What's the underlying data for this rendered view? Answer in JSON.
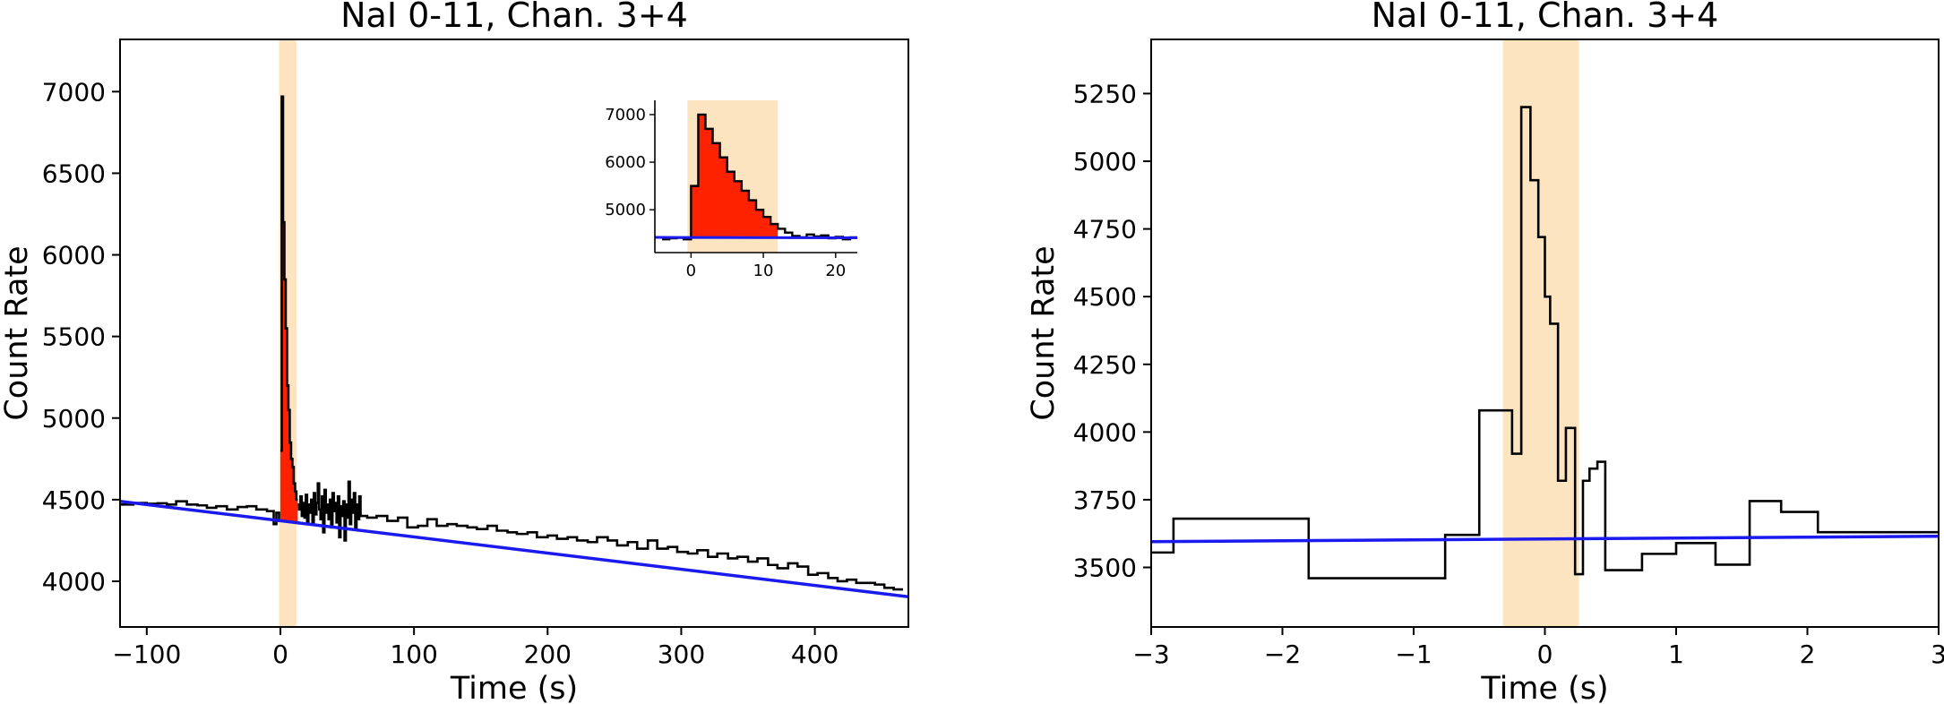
{
  "chart_data": [
    {
      "id": "left",
      "type": "line",
      "title": "NaI 0-11, Chan. 3+4",
      "xlabel": "Time (s)",
      "ylabel": "Count Rate",
      "xlim": [
        -120,
        470
      ],
      "ylim": [
        3720,
        7320
      ],
      "xticks": [
        -100,
        0,
        100,
        200,
        300,
        400
      ],
      "yticks": [
        4000,
        4500,
        5000,
        5500,
        6000,
        6500,
        7000
      ],
      "source_interval": [
        -1,
        12
      ],
      "colors": {
        "light_curve": "#000000",
        "source_fill": "#ff2200",
        "background": "#1a1aee",
        "interval": "#fde4c0"
      },
      "background_fit": [
        [
          -120,
          4490
        ],
        [
          470,
          3905
        ]
      ],
      "light_curve_pre": [
        [
          -120,
          4470
        ],
        [
          -110,
          4480
        ],
        [
          -100,
          4475
        ],
        [
          -92,
          4478
        ],
        [
          -85,
          4470
        ],
        [
          -78,
          4490
        ],
        [
          -70,
          4470
        ],
        [
          -62,
          4465
        ],
        [
          -55,
          4450
        ],
        [
          -48,
          4460
        ],
        [
          -40,
          4440
        ],
        [
          -32,
          4455
        ],
        [
          -25,
          4460
        ],
        [
          -18,
          4440
        ],
        [
          -10,
          4430
        ],
        [
          -5,
          4350
        ],
        [
          -3,
          4420
        ],
        [
          -1,
          4370
        ]
      ],
      "light_curve_burst": [
        [
          0,
          4800
        ],
        [
          1,
          6970
        ],
        [
          2,
          6200
        ],
        [
          3,
          5850
        ],
        [
          4,
          5550
        ],
        [
          5,
          5200
        ],
        [
          6,
          5050
        ],
        [
          7,
          4850
        ],
        [
          8,
          4750
        ],
        [
          9,
          4700
        ],
        [
          10,
          4600
        ],
        [
          11,
          4550
        ],
        [
          12,
          4500
        ]
      ],
      "light_curve_post": [
        [
          13,
          4470
        ],
        [
          14,
          4440
        ],
        [
          15,
          4520
        ],
        [
          16,
          4400
        ],
        [
          17,
          4480
        ],
        [
          18,
          4390
        ],
        [
          19,
          4530
        ],
        [
          20,
          4360
        ],
        [
          21,
          4470
        ],
        [
          22,
          4420
        ],
        [
          23,
          4500
        ],
        [
          24,
          4350
        ],
        [
          25,
          4540
        ],
        [
          26,
          4410
        ],
        [
          27,
          4480
        ],
        [
          28,
          4600
        ],
        [
          29,
          4440
        ],
        [
          30,
          4380
        ],
        [
          31,
          4520
        ],
        [
          32,
          4300
        ],
        [
          33,
          4560
        ],
        [
          34,
          4420
        ],
        [
          35,
          4470
        ],
        [
          36,
          4380
        ],
        [
          37,
          4500
        ],
        [
          38,
          4330
        ],
        [
          39,
          4540
        ],
        [
          40,
          4430
        ],
        [
          41,
          4480
        ],
        [
          42,
          4360
        ],
        [
          43,
          4520
        ],
        [
          44,
          4270
        ],
        [
          45,
          4460
        ],
        [
          46,
          4400
        ],
        [
          47,
          4490
        ],
        [
          48,
          4250
        ],
        [
          49,
          4470
        ],
        [
          50,
          4390
        ],
        [
          51,
          4610
        ],
        [
          52,
          4350
        ],
        [
          53,
          4500
        ],
        [
          54,
          4420
        ],
        [
          55,
          4540
        ],
        [
          56,
          4330
        ],
        [
          57,
          4470
        ],
        [
          58,
          4380
        ],
        [
          59,
          4520
        ],
        [
          60,
          4400
        ],
        [
          65,
          4390
        ],
        [
          72,
          4400
        ],
        [
          80,
          4370
        ],
        [
          88,
          4390
        ],
        [
          95,
          4330
        ],
        [
          103,
          4340
        ],
        [
          110,
          4380
        ],
        [
          117,
          4340
        ],
        [
          125,
          4350
        ],
        [
          132,
          4340
        ],
        [
          140,
          4330
        ],
        [
          147,
          4320
        ],
        [
          155,
          4340
        ],
        [
          162,
          4310
        ],
        [
          170,
          4300
        ],
        [
          177,
          4290
        ],
        [
          185,
          4300
        ],
        [
          192,
          4270
        ],
        [
          200,
          4280
        ],
        [
          207,
          4260
        ],
        [
          215,
          4270
        ],
        [
          222,
          4250
        ],
        [
          230,
          4240
        ],
        [
          237,
          4270
        ],
        [
          245,
          4250
        ],
        [
          252,
          4220
        ],
        [
          260,
          4240
        ],
        [
          267,
          4200
        ],
        [
          275,
          4250
        ],
        [
          282,
          4200
        ],
        [
          290,
          4210
        ],
        [
          297,
          4180
        ],
        [
          305,
          4170
        ],
        [
          312,
          4190
        ],
        [
          320,
          4150
        ],
        [
          327,
          4170
        ],
        [
          335,
          4140
        ],
        [
          342,
          4150
        ],
        [
          350,
          4120
        ],
        [
          357,
          4140
        ],
        [
          365,
          4100
        ],
        [
          372,
          4080
        ],
        [
          380,
          4110
        ],
        [
          387,
          4090
        ],
        [
          395,
          4040
        ],
        [
          402,
          4050
        ],
        [
          410,
          4020
        ],
        [
          417,
          4000
        ],
        [
          424,
          4010
        ],
        [
          431,
          3990
        ],
        [
          438,
          3990
        ],
        [
          445,
          3980
        ],
        [
          452,
          3960
        ],
        [
          459,
          3950
        ]
      ],
      "inset": {
        "xlim": [
          -5,
          23
        ],
        "ylim": [
          4100,
          7300
        ],
        "xticks": [
          0,
          10,
          20
        ],
        "yticks": [
          5000,
          6000,
          7000
        ],
        "source_interval": [
          -0.5,
          12
        ],
        "background_fit": [
          [
            -5,
            4420
          ],
          [
            23,
            4410
          ]
        ],
        "light_curve": [
          [
            -4,
            4380
          ],
          [
            -3,
            4400
          ],
          [
            -2,
            4410
          ],
          [
            -1,
            4380
          ],
          [
            0,
            5500
          ],
          [
            1,
            7000
          ],
          [
            2,
            6700
          ],
          [
            3,
            6400
          ],
          [
            4,
            6100
          ],
          [
            5,
            5800
          ],
          [
            6,
            5600
          ],
          [
            7,
            5400
          ],
          [
            8,
            5200
          ],
          [
            9,
            5000
          ],
          [
            10,
            4850
          ],
          [
            11,
            4700
          ],
          [
            12,
            4600
          ],
          [
            13,
            4520
          ],
          [
            14,
            4450
          ],
          [
            15,
            4420
          ],
          [
            16,
            4480
          ],
          [
            17,
            4440
          ],
          [
            18,
            4460
          ],
          [
            19,
            4400
          ],
          [
            20,
            4430
          ],
          [
            21,
            4380
          ],
          [
            22,
            4420
          ]
        ]
      }
    },
    {
      "id": "right",
      "type": "line",
      "title": "NaI 0-11, Chan. 3+4",
      "xlabel": "Time (s)",
      "ylabel": "Count Rate",
      "xlim": [
        -3,
        3
      ],
      "ylim": [
        3280,
        5450
      ],
      "xticks": [
        -3,
        -2,
        -1,
        0,
        1,
        2,
        3
      ],
      "xtick_labels": [
        "−3",
        "−2",
        "−1",
        "0",
        "1",
        "2",
        "3"
      ],
      "yticks": [
        3500,
        3750,
        4000,
        4250,
        4500,
        4750,
        5000,
        5250
      ],
      "source_interval": [
        -0.32,
        0.26
      ],
      "colors": {
        "light_curve": "#000000",
        "background": "#1a1aee",
        "interval": "#fde4c0"
      },
      "background_fit": [
        [
          -3,
          3595
        ],
        [
          3,
          3615
        ]
      ],
      "light_curve": [
        [
          -3,
          3555
        ],
        [
          -2.83,
          3680
        ],
        [
          -1.8,
          3460
        ],
        [
          -0.76,
          3620
        ],
        [
          -0.5,
          4080
        ],
        [
          -0.25,
          3920
        ],
        [
          -0.18,
          5200
        ],
        [
          -0.11,
          4930
        ],
        [
          -0.05,
          4720
        ],
        [
          0.0,
          4500
        ],
        [
          0.04,
          4400
        ],
        [
          0.1,
          3820
        ],
        [
          0.16,
          4015
        ],
        [
          0.23,
          3475
        ],
        [
          0.29,
          3820
        ],
        [
          0.34,
          3865
        ],
        [
          0.4,
          3890
        ],
        [
          0.46,
          3490
        ],
        [
          0.74,
          3550
        ],
        [
          1.0,
          3590
        ],
        [
          1.3,
          3510
        ],
        [
          1.56,
          3745
        ],
        [
          1.8,
          3705
        ],
        [
          2.08,
          3630
        ],
        [
          3,
          3630
        ]
      ]
    }
  ]
}
